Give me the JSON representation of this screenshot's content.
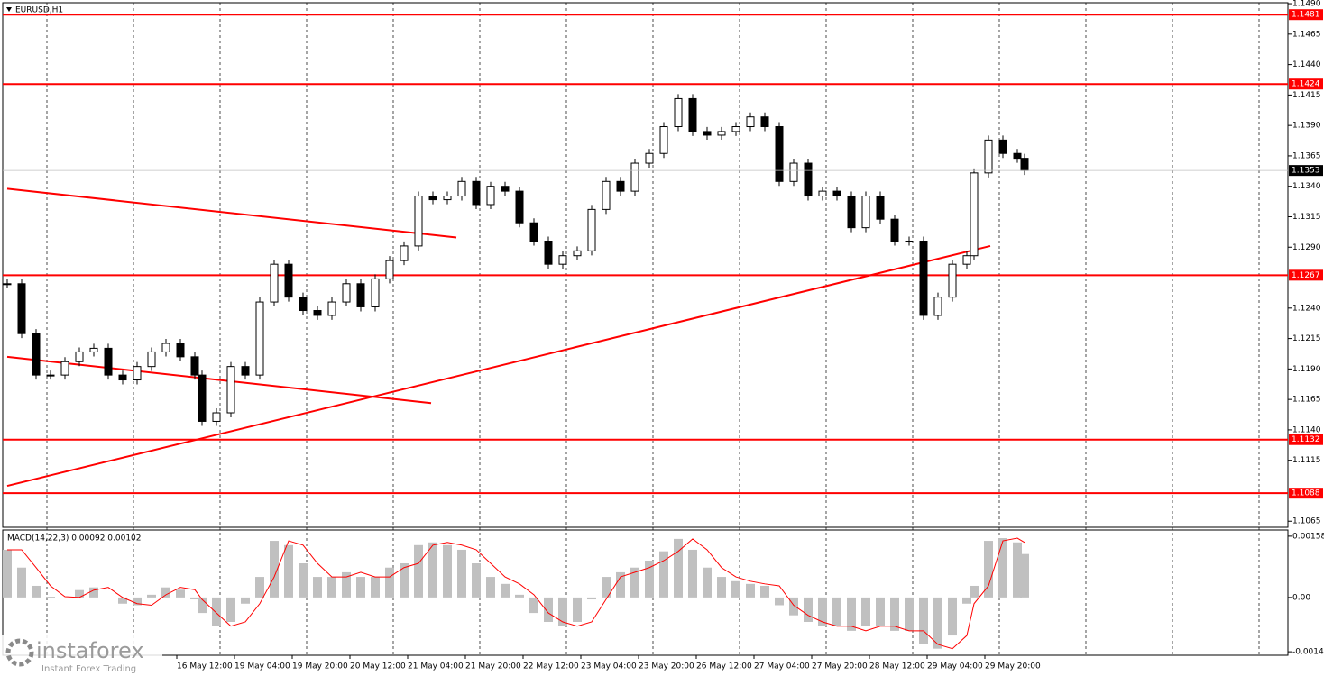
{
  "chart_data": {
    "type": "candlestick",
    "title": "EURUSD,H1",
    "x": [
      0,
      4,
      8,
      12,
      16,
      20,
      24,
      28,
      32,
      36,
      40,
      44,
      48,
      52,
      54,
      58,
      62,
      66,
      70,
      74,
      78,
      82,
      86,
      90,
      94,
      98,
      102,
      106,
      110,
      114,
      118,
      122,
      126,
      130,
      134,
      138,
      142,
      146,
      150,
      154,
      158,
      162,
      166,
      170,
      174,
      178,
      182,
      186,
      190,
      194,
      198,
      202,
      206,
      210,
      214,
      218,
      222,
      226,
      230,
      234,
      238,
      242,
      246,
      250,
      254,
      258,
      262,
      266,
      268,
      272,
      276,
      280,
      282
    ],
    "close": [
      1.126,
      1.1219,
      1.1185,
      1.1185,
      1.1196,
      1.1204,
      1.1207,
      1.1185,
      1.1181,
      1.1192,
      1.1204,
      1.1211,
      1.12,
      1.1185,
      1.1147,
      1.1154,
      1.1192,
      1.1185,
      1.1245,
      1.1276,
      1.1249,
      1.1238,
      1.1234,
      1.1245,
      1.126,
      1.1241,
      1.1264,
      1.1279,
      1.1291,
      1.1332,
      1.1329,
      1.1332,
      1.1344,
      1.1325,
      1.134,
      1.1336,
      1.131,
      1.1295,
      1.1276,
      1.1283,
      1.1287,
      1.1321,
      1.1344,
      1.1336,
      1.1359,
      1.1367,
      1.1389,
      1.1412,
      1.1385,
      1.1382,
      1.1385,
      1.1389,
      1.1397,
      1.1389,
      1.1344,
      1.1359,
      1.1332,
      1.1336,
      1.1332,
      1.1306,
      1.1332,
      1.1313,
      1.1295,
      1.1295,
      1.1234,
      1.1249,
      1.1276,
      1.1283,
      1.1351,
      1.1378,
      1.1367,
      1.1363,
      1.1353
    ],
    "ylim": [
      1.106,
      1.1493
    ],
    "yticks": [
      {
        "value": 1.149,
        "label": "1.1490"
      },
      1.1465,
      {
        "value": 1.144,
        "label": "1.1440"
      },
      1.1415,
      {
        "value": 1.139,
        "label": "1.1390"
      },
      1.1365,
      {
        "value": 1.134,
        "label": "1.1340"
      },
      1.1315,
      {
        "value": 1.129,
        "label": "1.1290"
      },
      {
        "value": 1.124,
        "label": "1.1240"
      },
      1.1215,
      {
        "value": 1.119,
        "label": "1.1190"
      },
      1.1165,
      {
        "value": 1.114,
        "label": "1.1140"
      },
      1.1115,
      1.1065
    ],
    "xlim": [
      -1.25,
      355
    ],
    "xticks": [
      {
        "value": 47,
        "label": "16 May 12:00"
      },
      {
        "value": 63,
        "label": "19 May 04:00"
      },
      {
        "value": 79,
        "label": "19 May 20:00"
      },
      {
        "value": 95,
        "label": "20 May 12:00"
      },
      {
        "value": 111,
        "label": "21 May 04:00"
      },
      {
        "value": 127,
        "label": "21 May 20:00"
      },
      {
        "value": 143,
        "label": "22 May 12:00"
      },
      {
        "value": 159,
        "label": "23 May 04:00"
      },
      {
        "value": 175,
        "label": "23 May 20:00"
      },
      {
        "value": 191,
        "label": "26 May 12:00"
      },
      {
        "value": 207,
        "label": "27 May 04:00"
      },
      {
        "value": 223,
        "label": "27 May 20:00"
      },
      {
        "value": 239,
        "label": "28 May 12:00"
      },
      {
        "value": 255,
        "label": "29 May 04:00"
      },
      {
        "value": 271,
        "label": "29 May 20:00"
      }
    ],
    "levels": [
      1.1481,
      1.1424,
      1.1267,
      1.1132,
      1.1088
    ],
    "level_color": "#ff0000",
    "trendlines": [
      {
        "x": [
          0,
          124.5
        ],
        "y": [
          1.1338,
          1.1298
        ]
      },
      {
        "x": [
          0,
          117.5
        ],
        "y": [
          1.12,
          1.1162
        ]
      },
      {
        "x": [
          0,
          272.5
        ],
        "y": [
          1.1094,
          1.1291
        ]
      }
    ],
    "current_price": 1.1353,
    "macd": {
      "title": "MACD(14,22,3) 0.00092 0.00102",
      "ylim": [
        -0.00149,
        0.00174
      ],
      "yticks": [
        0.00158,
        {
          "value": 0,
          "label": "0.00"
        },
        -0.0014
      ],
      "histogram": [
        0.00123,
        0.00077,
        0.0003,
        2e-05,
        0,
        0.00019,
        0.00026,
        0,
        -0.00016,
        -0.0002,
        7e-05,
        0.00026,
        0.0002,
        -5e-05,
        -0.0004,
        -0.00074,
        -0.00063,
        -0.00016,
        0.00053,
        0.00146,
        0.00135,
        0.00088,
        0.00053,
        0.00053,
        0.00065,
        0.00053,
        0.00053,
        0.00077,
        0.00088,
        0.00135,
        0.00142,
        0.00135,
        0.00123,
        0.00088,
        0.00053,
        0.00035,
        7e-05,
        -0.0004,
        -0.00063,
        -0.00074,
        -0.00063,
        -5e-05,
        0.00053,
        0.00065,
        0.00077,
        0.00095,
        0.00119,
        0.00151,
        0.00123,
        0.00077,
        0.00053,
        0.00042,
        0.00035,
        0.0003,
        -0.0002,
        -0.00046,
        -0.00063,
        -0.00074,
        -0.00074,
        -0.00086,
        -0.00074,
        -0.00074,
        -0.00086,
        -0.00086,
        -0.00121,
        -0.00132,
        -0.00098,
        -0.00016,
        0.0003,
        0.00146,
        0.00153,
        0.00142,
        0.00112
      ],
      "signal": [
        0.00123,
        0.00123,
        0.00077,
        0.0003,
        2e-05,
        0,
        0.00019,
        0.00026,
        0,
        -0.00016,
        -0.0002,
        7e-05,
        0.00026,
        0.0002,
        -5e-05,
        -0.0004,
        -0.00074,
        -0.00063,
        -0.00016,
        0.00053,
        0.00146,
        0.00135,
        0.00088,
        0.00053,
        0.00053,
        0.00065,
        0.00053,
        0.00053,
        0.00077,
        0.00088,
        0.00135,
        0.00142,
        0.00135,
        0.00123,
        0.00088,
        0.00053,
        0.00035,
        7e-05,
        -0.0004,
        -0.00063,
        -0.00074,
        -0.00063,
        -5e-05,
        0.00053,
        0.00065,
        0.00077,
        0.00095,
        0.00119,
        0.00151,
        0.00123,
        0.00077,
        0.00053,
        0.00042,
        0.00035,
        0.0003,
        -0.0002,
        -0.00046,
        -0.00063,
        -0.00074,
        -0.00074,
        -0.00086,
        -0.00074,
        -0.00074,
        -0.00086,
        -0.00086,
        -0.00121,
        -0.00132,
        -0.00098,
        -0.00016,
        0.0003,
        0.00146,
        0.00153,
        0.00142
      ],
      "histogram_color": "#c0c0c0",
      "signal_color": "#ff0000"
    },
    "watermark": {
      "brand": "instaforex",
      "tagline": "Instant Forex Trading"
    }
  }
}
